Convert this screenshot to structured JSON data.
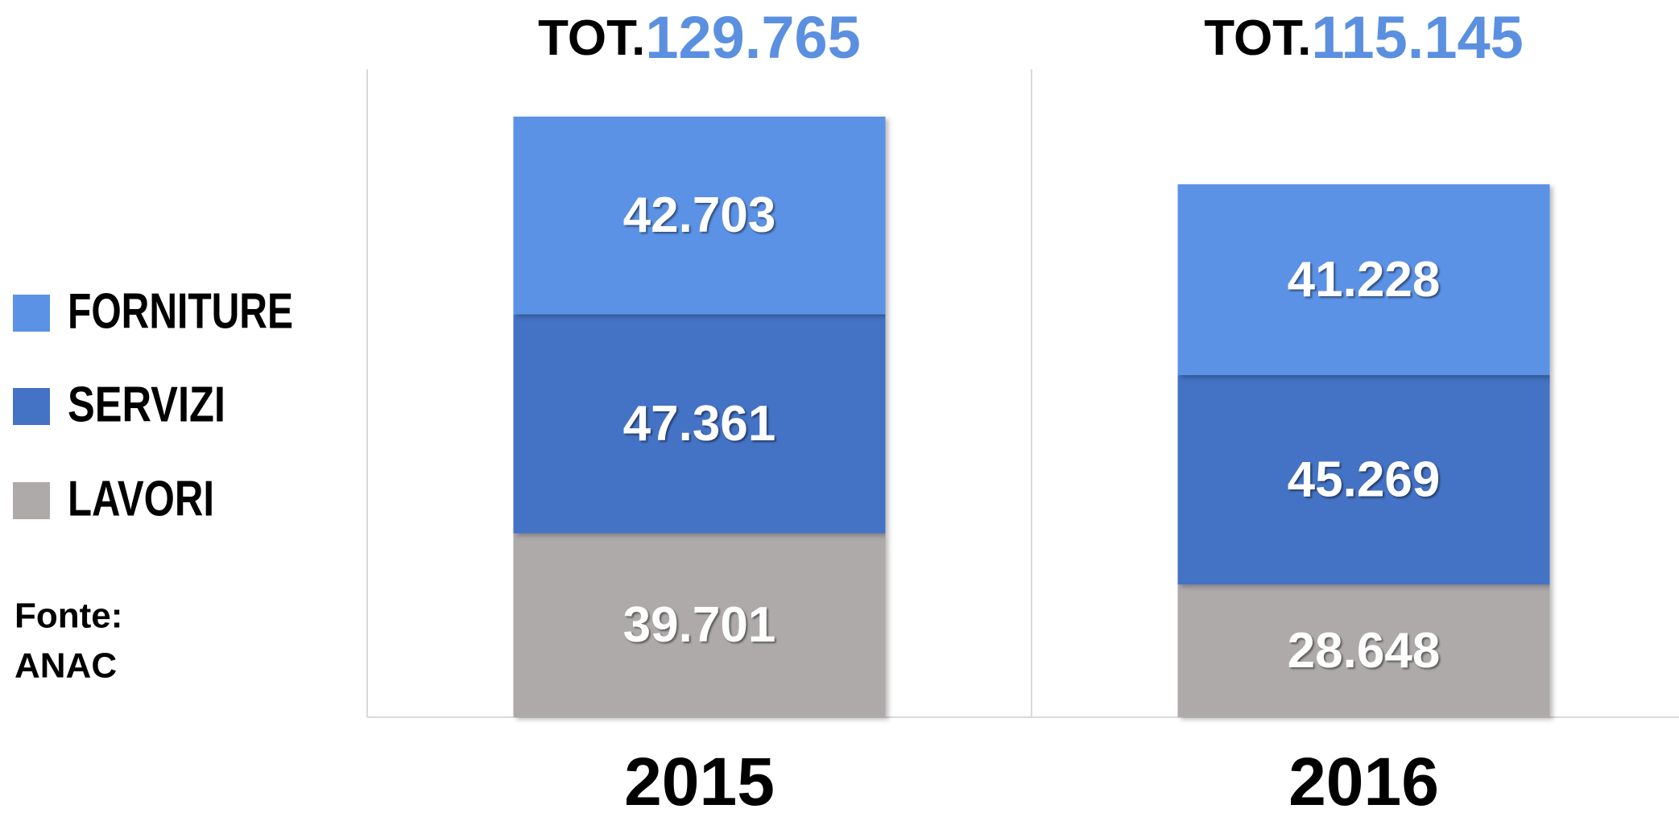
{
  "chart_data": {
    "type": "stacked_bar",
    "categories": [
      "2015",
      "2016"
    ],
    "series": [
      {
        "name": "LAVORI",
        "color": "#aeaaaa",
        "values": [
          39701,
          28648
        ],
        "value_labels": [
          "39.701",
          "28.648"
        ]
      },
      {
        "name": "SERVIZI",
        "color": "#4472c4",
        "values": [
          47361,
          45269
        ],
        "value_labels": [
          "47.361",
          "45.269"
        ]
      },
      {
        "name": "FORNITURE",
        "color": "#5b92e5",
        "values": [
          42703,
          41228
        ],
        "value_labels": [
          "42.703",
          "41.228"
        ]
      }
    ],
    "totals": {
      "prefix": "TOT.",
      "values": [
        129765,
        115145
      ],
      "value_labels": [
        "129.765",
        "115.145"
      ],
      "color": "#5b8fe0"
    },
    "ylim": [
      0,
      140000
    ],
    "source": [
      "Fonte:",
      "ANAC"
    ]
  }
}
